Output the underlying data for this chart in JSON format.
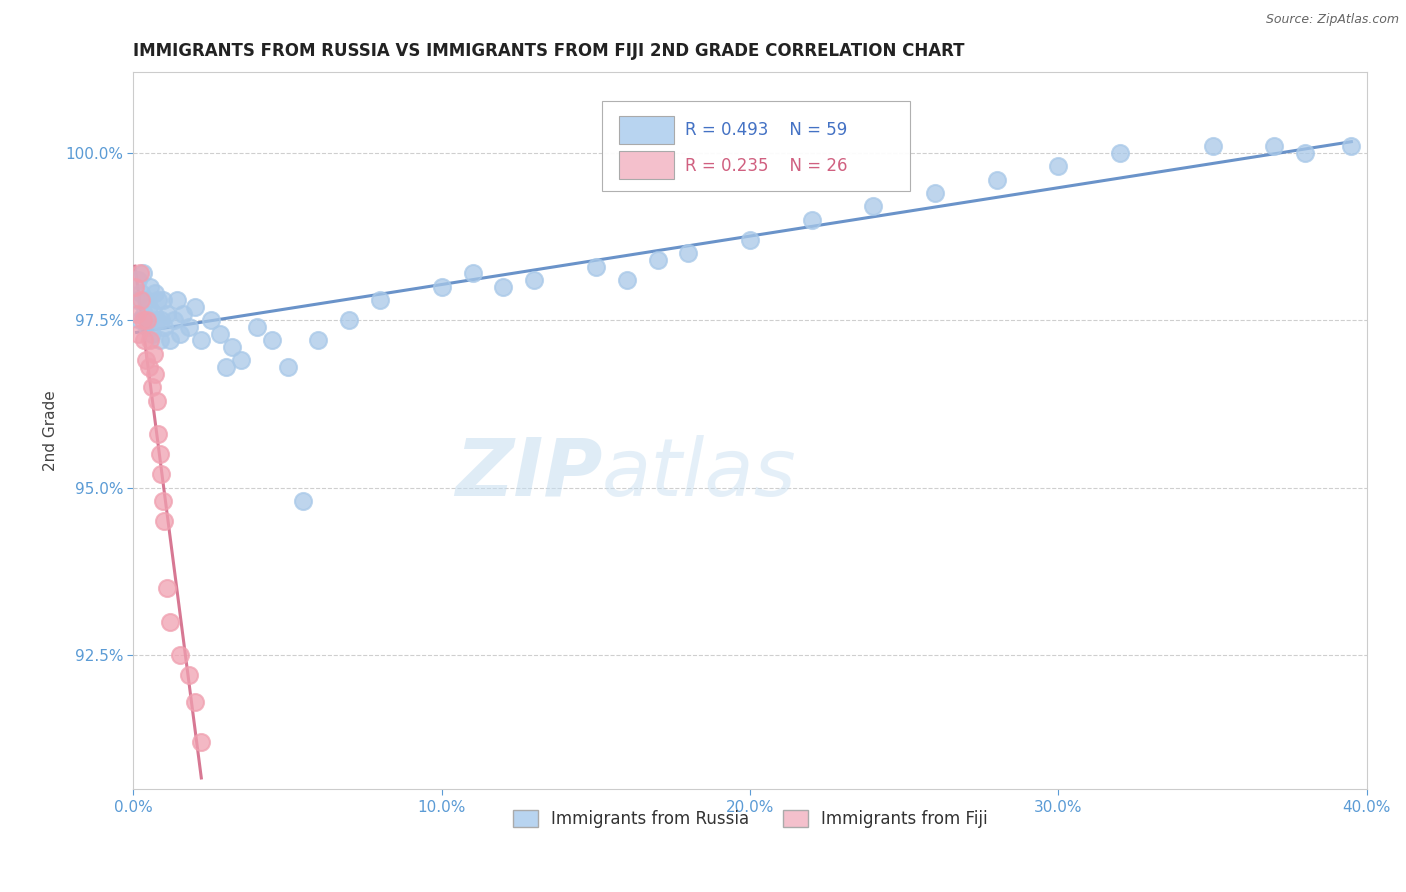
{
  "title": "IMMIGRANTS FROM RUSSIA VS IMMIGRANTS FROM FIJI 2ND GRADE CORRELATION CHART",
  "source_text": "Source: ZipAtlas.com",
  "ylabel": "2nd Grade",
  "xlim": [
    0.0,
    40.0
  ],
  "ylim": [
    90.5,
    101.2
  ],
  "yticks": [
    92.5,
    95.0,
    97.5,
    100.0
  ],
  "ytick_labels": [
    "92.5%",
    "95.0%",
    "97.5%",
    "100.0%"
  ],
  "xticks": [
    0.0,
    10.0,
    20.0,
    30.0,
    40.0
  ],
  "xtick_labels": [
    "0.0%",
    "10.0%",
    "20.0%",
    "30.0%",
    "40.0%"
  ],
  "russia_R": 0.493,
  "russia_N": 59,
  "fiji_R": 0.235,
  "fiji_N": 26,
  "russia_color": "#a8c8e8",
  "fiji_color": "#f0a0b0",
  "russia_line_color": "#5080c0",
  "fiji_line_color": "#d06080",
  "legend_box_color_russia": "#b8d4f0",
  "legend_box_color_fiji": "#f4c0cc",
  "title_fontsize": 12,
  "axis_label_color": "#5b9bd5",
  "tick_label_color": "#5b9bd5",
  "grid_color": "#bbbbbb",
  "grid_linestyle": "--",
  "background_color": "#ffffff",
  "watermark_zip_color": "#c8dff0",
  "watermark_atlas_color": "#c8dff0",
  "russia_x": [
    0.1,
    0.15,
    0.2,
    0.25,
    0.3,
    0.35,
    0.4,
    0.45,
    0.5,
    0.55,
    0.6,
    0.65,
    0.7,
    0.75,
    0.8,
    0.85,
    0.9,
    0.95,
    1.0,
    1.1,
    1.2,
    1.3,
    1.4,
    1.5,
    1.6,
    1.8,
    2.0,
    2.2,
    2.5,
    2.8,
    3.0,
    3.2,
    3.5,
    4.0,
    4.5,
    5.0,
    5.5,
    6.0,
    7.0,
    8.0,
    10.0,
    11.0,
    12.0,
    13.0,
    15.0,
    16.0,
    17.0,
    18.0,
    20.0,
    22.0,
    24.0,
    26.0,
    28.0,
    30.0,
    32.0,
    35.0,
    37.0,
    38.0,
    39.5
  ],
  "russia_y": [
    97.8,
    98.1,
    97.5,
    97.9,
    98.2,
    97.6,
    97.8,
    97.4,
    97.7,
    98.0,
    97.3,
    97.6,
    97.9,
    97.5,
    97.8,
    97.2,
    97.5,
    97.8,
    97.4,
    97.6,
    97.2,
    97.5,
    97.8,
    97.3,
    97.6,
    97.4,
    97.7,
    97.2,
    97.5,
    97.3,
    96.8,
    97.1,
    96.9,
    97.4,
    97.2,
    96.8,
    94.8,
    97.2,
    97.5,
    97.8,
    98.0,
    98.2,
    98.0,
    98.1,
    98.3,
    98.1,
    98.4,
    98.5,
    98.7,
    99.0,
    99.2,
    99.4,
    99.6,
    99.8,
    100.0,
    100.1,
    100.1,
    100.0,
    100.1
  ],
  "fiji_x": [
    0.05,
    0.1,
    0.15,
    0.2,
    0.25,
    0.3,
    0.35,
    0.4,
    0.45,
    0.5,
    0.55,
    0.6,
    0.65,
    0.7,
    0.75,
    0.8,
    0.85,
    0.9,
    0.95,
    1.0,
    1.1,
    1.2,
    1.5,
    1.8,
    2.0,
    2.2
  ],
  "fiji_y": [
    98.0,
    97.6,
    97.3,
    98.2,
    97.8,
    97.5,
    97.2,
    96.9,
    97.5,
    96.8,
    97.2,
    96.5,
    97.0,
    96.7,
    96.3,
    95.8,
    95.5,
    95.2,
    94.8,
    94.5,
    93.5,
    93.0,
    92.5,
    92.2,
    91.8,
    91.2
  ]
}
